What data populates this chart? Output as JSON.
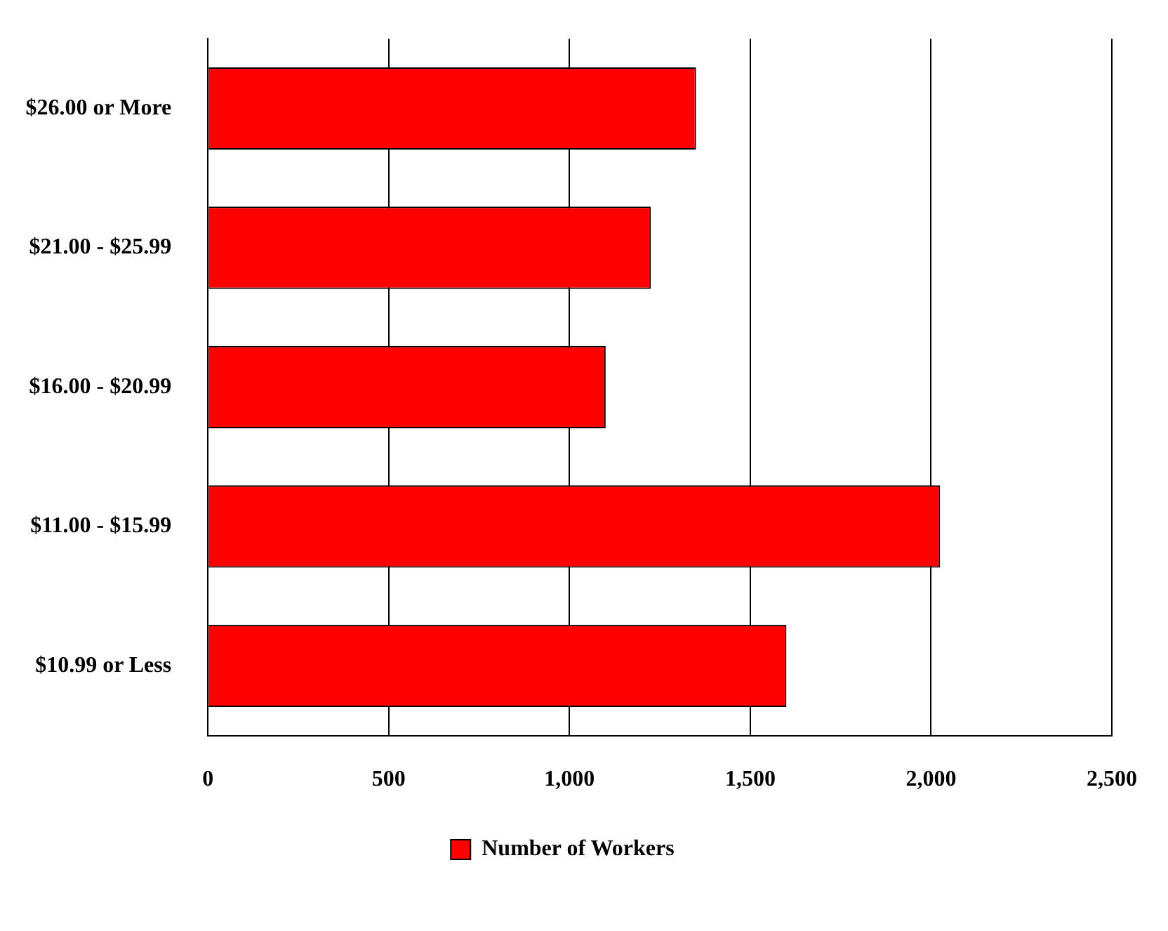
{
  "chart_data": {
    "type": "bar",
    "orientation": "horizontal",
    "categories": [
      "$26.00 or More",
      "$21.00 - $25.99",
      "$16.00 - $20.99",
      "$11.00 - $15.99",
      "$10.99 or Less"
    ],
    "series": [
      {
        "name": "Number of Workers",
        "color": "#ff0000",
        "values": [
          1350,
          1225,
          1100,
          2025,
          1600
        ]
      }
    ],
    "xlim": [
      0,
      2500
    ],
    "xticks": [
      {
        "value": 0,
        "label": "0"
      },
      {
        "value": 500,
        "label": "500"
      },
      {
        "value": 1000,
        "label": "1,000"
      },
      {
        "value": 1500,
        "label": "1,500"
      },
      {
        "value": 2000,
        "label": "2,000"
      },
      {
        "value": 2500,
        "label": "2,500"
      }
    ],
    "grid": "x",
    "legend": "bottom"
  }
}
